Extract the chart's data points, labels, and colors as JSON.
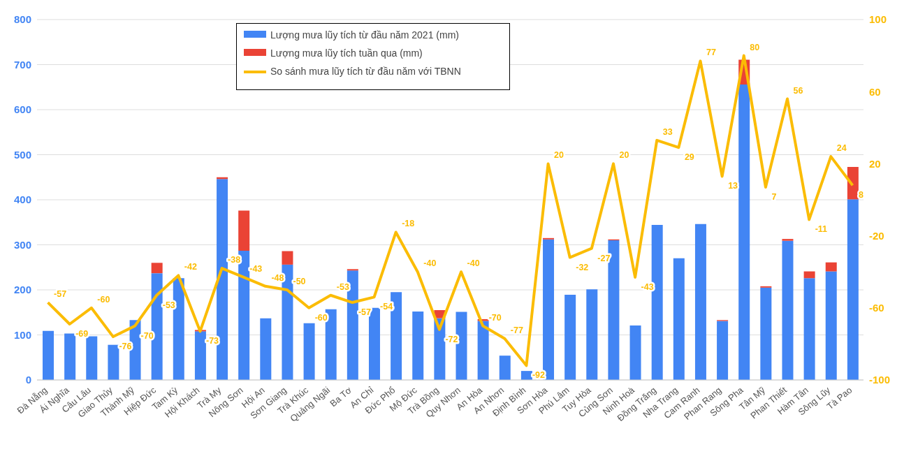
{
  "chart_data": {
    "type": "bar",
    "stacked": true,
    "categories": [
      "Đà Nẵng",
      "Ái Nghĩa",
      "Câu Lâu",
      "Giao Thủy",
      "Thành Mỹ",
      "Hiệp Đức",
      "Tam Kỳ",
      "Hội Khách",
      "Trà My",
      "Nông Sơn",
      "Hội An",
      "Sơn Giang",
      "Trà Khúc",
      "Quảng Ngãi",
      "Ba Tơ",
      "An Chỉ",
      "Đức Phổ",
      "Mộ Đức",
      "Trà Bồng",
      "Quy Nhơn",
      "An Hòa",
      "An Nhơn",
      "Định Bình",
      "Sơn Hòa",
      "Phú Lâm",
      "Tuy Hòa",
      "Củng Sơn",
      "Ninh Hoà",
      "Đồng Trăng",
      "Nha Trang",
      "Cam Ranh",
      "Phan Rang",
      "Sông Pha",
      "Tân Mỹ",
      "Phan Thiết",
      "Hàm Tân",
      "Sông Lũy",
      "Tà Pao"
    ],
    "series": [
      {
        "name": "Lượng mưa lũy tích từ đầu năm 2021 (mm)",
        "color": "#4285f4",
        "values": [
          109,
          103,
          97,
          78,
          133,
          237,
          226,
          108,
          446,
          287,
          137,
          256,
          126,
          157,
          243,
          160,
          195,
          152,
          137,
          151,
          131,
          54,
          20,
          312,
          189,
          201,
          310,
          121,
          344,
          270,
          346,
          131,
          656,
          205,
          309,
          226,
          241,
          401
        ]
      },
      {
        "name": "Lượng mưa lũy tích tuần qua (mm)",
        "color": "#ea4335",
        "values": [
          0,
          0,
          0,
          0,
          0,
          23,
          0,
          3,
          4,
          89,
          0,
          30,
          0,
          0,
          3,
          0,
          0,
          0,
          18,
          0,
          4,
          0,
          0,
          3,
          0,
          0,
          2,
          0,
          0,
          0,
          0,
          2,
          55,
          3,
          4,
          15,
          20,
          72
        ]
      },
      {
        "name": "So sánh mưa lũy tích từ đầu năm với TBNN",
        "type": "line",
        "axis": "y2",
        "color": "#fbbc04",
        "data_labels": true,
        "values": [
          -57,
          -69,
          -60,
          -76,
          -70,
          -53,
          -42,
          -73,
          -38,
          -43,
          -48,
          -50,
          -60,
          -53,
          -57,
          -54,
          -18,
          -40,
          -72,
          -40,
          -70,
          -77,
          -92,
          20,
          -32,
          -27,
          20,
          -43,
          33,
          29,
          77,
          13,
          80,
          7,
          56,
          -11,
          24,
          8
        ]
      }
    ],
    "ylim": [
      0,
      800
    ],
    "yticks": [
      0,
      100,
      200,
      300,
      400,
      500,
      600,
      700,
      800
    ],
    "y2lim": [
      -100,
      100
    ],
    "y2ticks": [
      -100,
      -60,
      -20,
      20,
      60,
      100
    ],
    "grid": "y",
    "legend": "top",
    "marker": "none",
    "line_style": "solid"
  }
}
